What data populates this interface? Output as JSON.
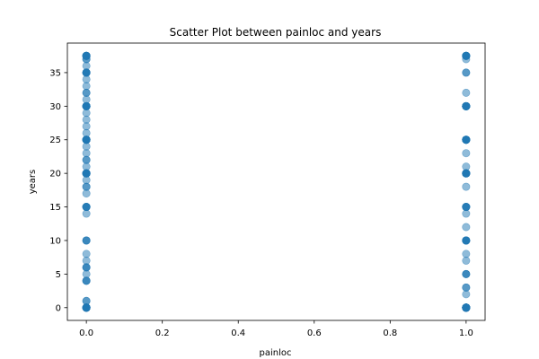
{
  "chart_data": {
    "type": "scatter",
    "title": "Scatter Plot between painloc and years",
    "xlabel": "painloc",
    "ylabel": "years",
    "xlim": [
      -0.05,
      1.05
    ],
    "ylim": [
      -1.9,
      39.4
    ],
    "xticks": [
      0.0,
      0.2,
      0.4,
      0.6,
      0.8,
      1.0
    ],
    "xtick_labels": [
      "0.0",
      "0.2",
      "0.4",
      "0.6",
      "0.8",
      "1.0"
    ],
    "yticks": [
      0,
      5,
      10,
      15,
      20,
      25,
      30,
      35
    ],
    "ytick_labels": [
      "0",
      "5",
      "10",
      "15",
      "20",
      "25",
      "30",
      "35"
    ],
    "grid": false,
    "marker_color": "#1f77b4",
    "marker_alpha": 0.5,
    "series": [
      {
        "values_x": [
          0,
          0,
          0,
          0,
          0,
          0,
          0,
          0,
          0,
          0,
          0,
          0,
          0,
          0,
          0,
          0,
          0,
          0,
          0,
          0,
          0,
          0,
          0,
          0,
          0,
          0,
          0,
          0,
          0,
          0,
          0,
          0,
          0,
          0,
          0,
          0,
          0,
          0,
          0,
          0,
          0,
          0,
          0,
          0,
          0,
          0,
          0,
          0,
          0,
          0,
          0,
          0,
          0,
          0,
          0,
          0,
          0,
          0,
          0,
          0,
          0,
          0,
          0,
          0,
          0,
          0,
          0,
          0,
          0,
          0,
          0,
          0,
          0,
          0,
          0,
          0,
          0,
          0,
          0,
          0,
          0,
          0,
          0,
          0,
          0,
          0,
          0,
          0,
          0,
          0,
          0,
          0,
          0
        ],
        "values_y": [
          0,
          0,
          0,
          0,
          0,
          0,
          0,
          1,
          1,
          4,
          4,
          5,
          6,
          6,
          7,
          8,
          10,
          10,
          14,
          15,
          15,
          15,
          17,
          18,
          18,
          19,
          20,
          20,
          20,
          20,
          20,
          21,
          22,
          22,
          23,
          24,
          25,
          25,
          25,
          25,
          26,
          27,
          28,
          29,
          30,
          30,
          30,
          30,
          31,
          32,
          32,
          33,
          34,
          35,
          35,
          35,
          36,
          37,
          37,
          37.5,
          37.5,
          37.5,
          37.5,
          0,
          0,
          0,
          6,
          10,
          15,
          20,
          20,
          25,
          25,
          30,
          30,
          35,
          37.5,
          0,
          4,
          15,
          20,
          25,
          30,
          35,
          37.5,
          0,
          20,
          30,
          37.5,
          25,
          35,
          20,
          0
        ]
      },
      {
        "values_x": [
          1,
          1,
          1,
          1,
          1,
          1,
          1,
          1,
          1,
          1,
          1,
          1,
          1,
          1,
          1,
          1,
          1,
          1,
          1,
          1,
          1,
          1,
          1,
          1,
          1,
          1,
          1,
          1,
          1,
          1,
          1,
          1,
          1,
          1,
          1,
          1,
          1,
          1,
          1,
          1,
          1,
          1,
          1,
          1,
          1,
          1,
          1,
          1,
          1,
          1,
          1,
          1,
          1,
          1,
          1,
          1,
          1,
          1,
          1,
          1,
          1,
          1,
          1,
          1,
          1,
          1,
          1,
          1,
          1,
          1,
          1,
          1,
          1,
          1,
          1,
          1,
          1,
          1,
          1,
          1,
          1,
          1,
          1,
          1,
          1,
          1,
          1,
          1,
          1,
          1,
          1,
          1,
          1,
          1,
          1,
          1,
          1,
          1,
          1,
          1
        ],
        "values_y": [
          0,
          0,
          0,
          0,
          0,
          0,
          0,
          0,
          0,
          0,
          0,
          0,
          2,
          3,
          3,
          5,
          5,
          7,
          8,
          10,
          10,
          10,
          12,
          14,
          15,
          15,
          15,
          18,
          20,
          20,
          20,
          20,
          20,
          20,
          21,
          23,
          25,
          25,
          25,
          25,
          25,
          30,
          30,
          30,
          30,
          30,
          30,
          30,
          32,
          35,
          35,
          37,
          37.5,
          37.5,
          37.5,
          37.5,
          0,
          0,
          0,
          0,
          0,
          10,
          15,
          20,
          20,
          25,
          30,
          30,
          37.5,
          37.5,
          0,
          0,
          5,
          10,
          20,
          25,
          30,
          37.5,
          0,
          0,
          20,
          30,
          0,
          0,
          0,
          25,
          30,
          20,
          0,
          0,
          0,
          10,
          15,
          30,
          0,
          0,
          20,
          25,
          30,
          0
        ]
      }
    ]
  }
}
